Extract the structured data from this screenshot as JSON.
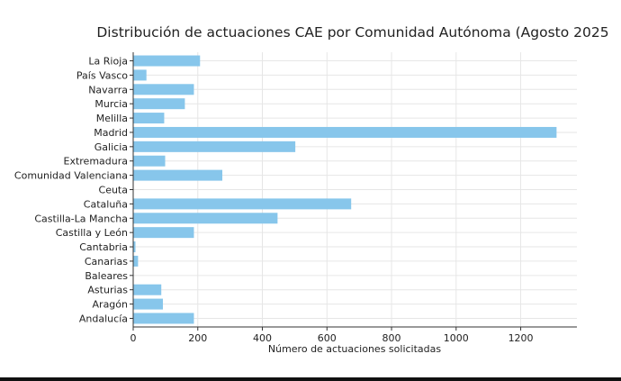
{
  "chart_data": {
    "type": "bar",
    "orientation": "horizontal",
    "title": "Distribución de actuaciones CAE por Comunidad Autónoma (Agosto 2025",
    "xlabel": "Número de actuaciones solicitadas",
    "ylabel": "",
    "xlim": [
      0,
      1374
    ],
    "xticks": [
      0,
      200,
      400,
      600,
      800,
      1000,
      1200
    ],
    "grid": true,
    "bar_color": "#87c6eb",
    "categories": [
      "La Rioja",
      "País Vasco",
      "Navarra",
      "Murcia",
      "Melilla",
      "Madrid",
      "Galicia",
      "Extremadura",
      "Comunidad Valenciana",
      "Ceuta",
      "Cataluña",
      "Castilla-La Mancha",
      "Castilla y León",
      "Cantabria",
      "Canarias",
      "Baleares",
      "Asturias",
      "Aragón",
      "Andalucía"
    ],
    "values": [
      207,
      41,
      188,
      160,
      96,
      1311,
      502,
      99,
      276,
      0,
      675,
      447,
      188,
      7,
      15,
      0,
      87,
      92,
      188
    ]
  }
}
